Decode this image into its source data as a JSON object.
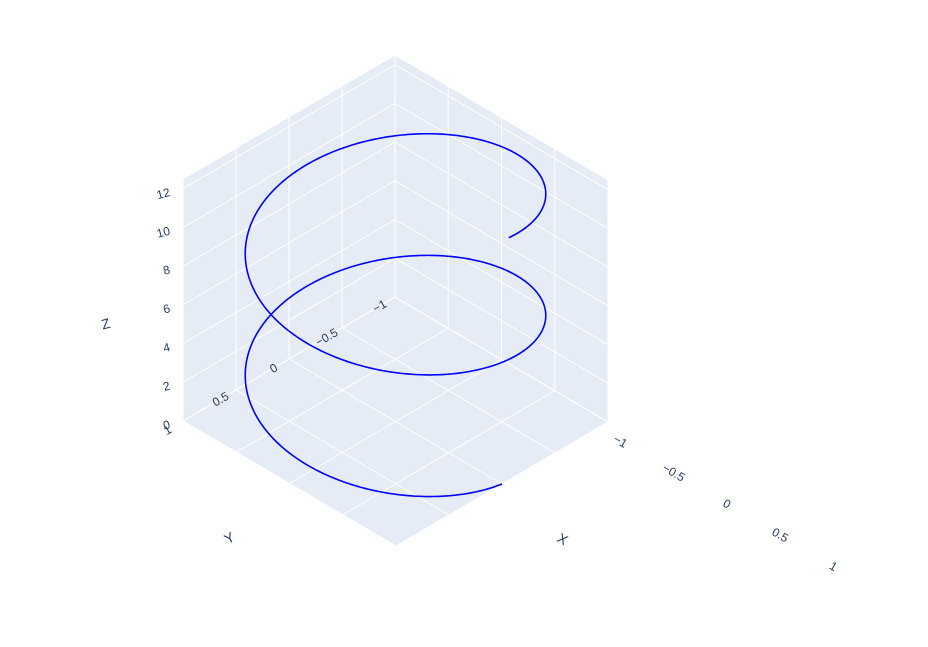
{
  "chart_data": {
    "type": "line3d",
    "title": "",
    "axes": {
      "x": {
        "title": "X",
        "range": [
          -1,
          1
        ],
        "ticks": [
          -1,
          -0.5,
          0,
          0.5,
          1
        ],
        "tick_labels": [
          "−1",
          "−0.5",
          "0",
          "0.5",
          "1"
        ]
      },
      "y": {
        "title": "Y",
        "range": [
          -1,
          1
        ],
        "ticks": [
          -1,
          -0.5,
          0,
          0.5,
          1
        ],
        "tick_labels": [
          "−1",
          "−0.5",
          "0",
          "0.5",
          "1"
        ]
      },
      "z": {
        "title": "Z",
        "range": [
          0,
          12.5
        ],
        "ticks": [
          0,
          2,
          4,
          6,
          8,
          10,
          12
        ],
        "tick_labels": [
          "0",
          "2",
          "4",
          "6",
          "8",
          "10",
          "12"
        ]
      }
    },
    "series": [
      {
        "function": {
          "x": "cos(t)",
          "y": "sin(t)",
          "z": "t"
        },
        "t_range": [
          0,
          12.5
        ],
        "color": "#0000ff"
      }
    ],
    "grid": true,
    "background_color": "#e5ecf6",
    "grid_color": "#ffffff",
    "legend": "none"
  }
}
